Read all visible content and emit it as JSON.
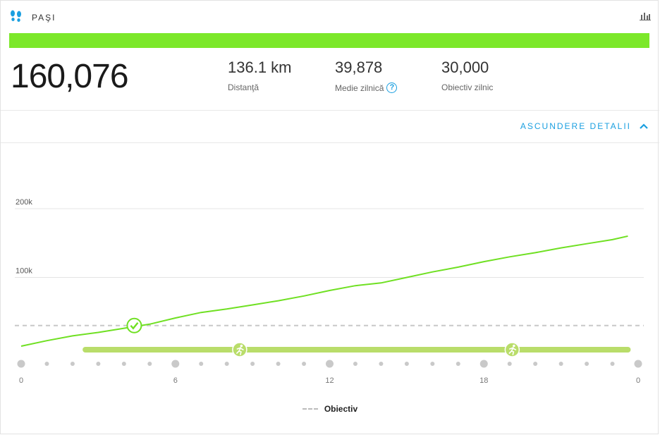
{
  "header": {
    "title": "PAŞI",
    "icon": "footsteps-icon",
    "chart_icon": "bar-chart-icon"
  },
  "progress": {
    "fraction": 1.0,
    "color": "#7ce82a"
  },
  "summary": {
    "total": "160,076",
    "distance": {
      "value": "136.1 km",
      "label": "Distanţă"
    },
    "daily_average": {
      "value": "39,878",
      "label": "Medie zilnică",
      "help": "?"
    },
    "daily_goal": {
      "value": "30,000",
      "label": "Obiectiv zilnic"
    }
  },
  "details_toggle": {
    "label": "ASCUNDERE DETALII",
    "icon": "chevron-up-icon"
  },
  "colors": {
    "line": "#6fe022",
    "goal": "#c8c8c8",
    "activity": "#b9dd6a",
    "accent": "#1a9fe0"
  },
  "chart_data": {
    "type": "line",
    "title": "",
    "xlabel": "",
    "ylabel": "",
    "x_ticks": [
      "0",
      "6",
      "12",
      "18",
      "0"
    ],
    "y_ticks": [
      "100k",
      "200k"
    ],
    "ylim": [
      0,
      200000
    ],
    "xlim": [
      0,
      24
    ],
    "grid": true,
    "series": [
      {
        "x": [
          0,
          1,
          2,
          3,
          4,
          5,
          6,
          7,
          8,
          9,
          10,
          11,
          12,
          13,
          14,
          15,
          16,
          17,
          18,
          19,
          20,
          21,
          22,
          23,
          23.6
        ],
        "values": [
          0,
          8000,
          15000,
          20000,
          26000,
          32000,
          41000,
          49000,
          54000,
          60000,
          66000,
          73000,
          81000,
          88000,
          92000,
          100000,
          108000,
          115000,
          123000,
          130000,
          136000,
          143000,
          149000,
          155000,
          160076
        ]
      }
    ],
    "goal_line": {
      "label": "Obiectiv",
      "value": 30000
    },
    "goal_reached_at": 4.4,
    "activities": [
      {
        "start": 2.5,
        "end": 14.5,
        "marker": 8.5,
        "icon": "running-icon"
      },
      {
        "start": 14.5,
        "end": 23.6,
        "marker": 19.1,
        "icon": "running-icon"
      }
    ]
  },
  "legend": {
    "goal_label": "Obiectiv"
  }
}
